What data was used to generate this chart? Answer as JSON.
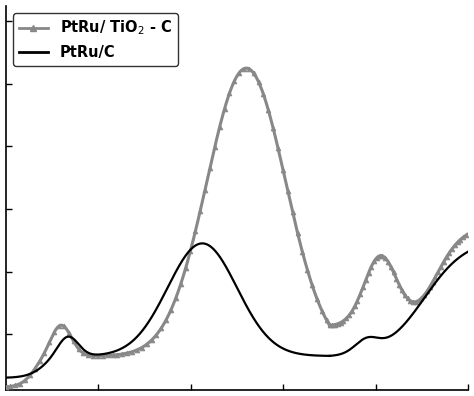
{
  "legend_ptru_tio2": "PtRu/ TiO$_2$ - C",
  "legend_ptru_c": "PtRu/C",
  "gray_color": "#888888",
  "black_color": "#000000",
  "background": "#ffffff",
  "xlim": [
    0,
    1
  ],
  "ylim": [
    -0.18,
    1.05
  ],
  "figsize": [
    4.74,
    3.96
  ],
  "dpi": 100,
  "lw_gray": 2.2,
  "lw_black": 1.6,
  "marker_size": 3.5,
  "marker_every_fwd": 12,
  "marker_every_rev": 8
}
